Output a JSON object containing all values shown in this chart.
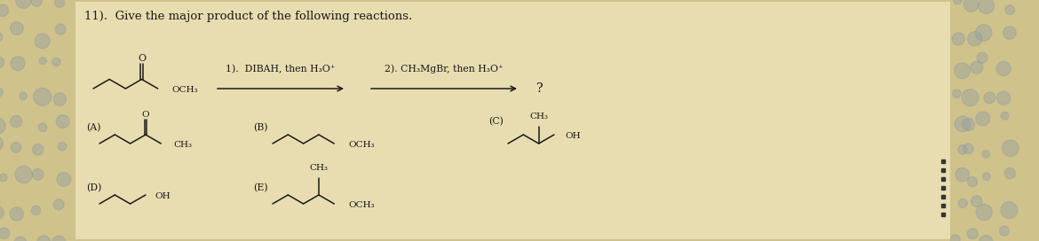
{
  "title": "11).  Give the major product of the following reactions.",
  "bg_color": "#cfc28a",
  "paper_color": "#e8ddb0",
  "text_color": "#1a1a1a",
  "title_fontsize": 9.5,
  "struct_fontsize": 7.5,
  "step1_text": "1).  DIBAH, then H₃O⁺",
  "step2_text": "2). CH₃MgBr, then H₃O⁺",
  "question_mark": "?",
  "left_deco_color": "#555555",
  "right_deco_color": "#444444"
}
